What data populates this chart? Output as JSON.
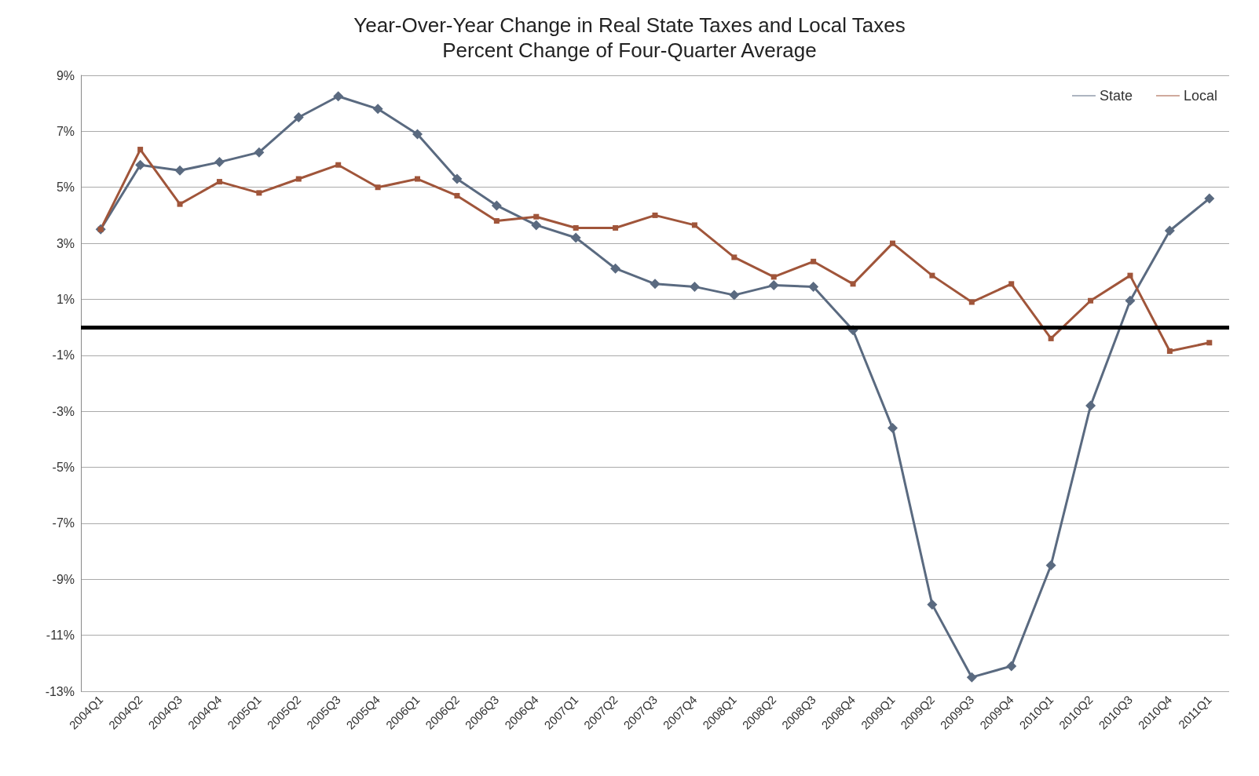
{
  "chart_data": {
    "type": "line",
    "title": "Year-Over-Year Change in Real State Taxes and Local Taxes",
    "subtitle": "Percent Change of Four-Quarter Average",
    "categories": [
      "2004Q1",
      "2004Q2",
      "2004Q3",
      "2004Q4",
      "2005Q1",
      "2005Q2",
      "2005Q3",
      "2005Q4",
      "2006Q1",
      "2006Q2",
      "2006Q3",
      "2006Q4",
      "2007Q1",
      "2007Q2",
      "2007Q3",
      "2007Q4",
      "2008Q1",
      "2008Q2",
      "2008Q3",
      "2008Q4",
      "2009Q1",
      "2009Q2",
      "2009Q3",
      "2009Q4",
      "2010Q1",
      "2010Q2",
      "2010Q3",
      "2010Q4",
      "2011Q1"
    ],
    "series": [
      {
        "name": "State",
        "color": "#5a6a80",
        "marker": "diamond",
        "values": [
          3.5,
          5.8,
          5.6,
          5.9,
          6.25,
          7.5,
          8.25,
          7.8,
          6.9,
          5.3,
          4.35,
          3.65,
          3.2,
          2.1,
          1.55,
          1.45,
          1.15,
          1.5,
          1.45,
          -0.1,
          -3.6,
          -9.9,
          -12.5,
          -12.1,
          -8.5,
          -2.8,
          0.95,
          3.45,
          4.6
        ]
      },
      {
        "name": "Local",
        "color": "#a0553a",
        "marker": "square",
        "values": [
          3.5,
          6.35,
          4.4,
          5.2,
          4.8,
          5.3,
          5.8,
          5.0,
          5.3,
          4.7,
          3.8,
          3.95,
          3.55,
          3.55,
          4.0,
          3.65,
          2.5,
          1.8,
          2.35,
          1.55,
          3.0,
          1.85,
          0.9,
          1.55,
          -0.4,
          0.95,
          1.85,
          -0.85,
          -0.55
        ]
      }
    ],
    "ylim": [
      -13,
      9
    ],
    "yticks": [
      {
        "value": -13,
        "label": "-13%"
      },
      {
        "value": -11,
        "label": "-11%"
      },
      {
        "value": -9,
        "label": "-9%"
      },
      {
        "value": -7,
        "label": "-7%"
      },
      {
        "value": -5,
        "label": "-5%"
      },
      {
        "value": -3,
        "label": "-3%"
      },
      {
        "value": -1,
        "label": "-1%"
      },
      {
        "value": 1,
        "label": "1%"
      },
      {
        "value": 3,
        "label": "3%"
      },
      {
        "value": 5,
        "label": "5%"
      },
      {
        "value": 7,
        "label": "7%"
      },
      {
        "value": 9,
        "label": "9%"
      }
    ],
    "ref_lines": [
      {
        "axis": "y",
        "value": 0,
        "color": "#000000"
      }
    ],
    "grid": "y",
    "legend": "top right",
    "line_style": "solid"
  }
}
